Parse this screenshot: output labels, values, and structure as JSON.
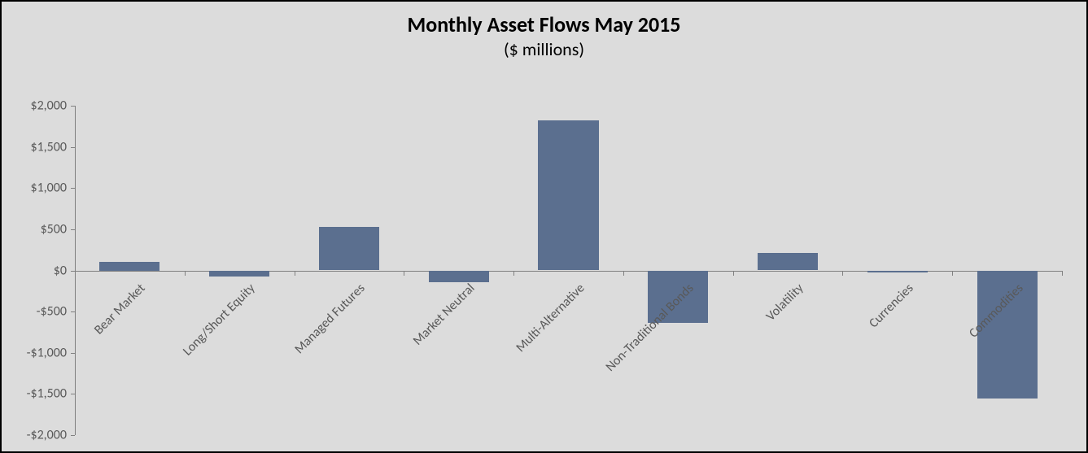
{
  "chart": {
    "type": "bar",
    "title": "Monthly Asset Flows May 2015",
    "subtitle": "($ millions)",
    "title_fontsize": 26,
    "subtitle_fontsize": 22,
    "title_weight": "700",
    "background_color": "#dcdcdc",
    "border_color": "#000000",
    "bar_color": "#5b6f8f",
    "axis_color": "#808080",
    "label_color": "#595959",
    "label_fontsize": 16,
    "categories": [
      "Bear Market",
      "Long/Short Equity",
      "Managed Futures",
      "Market Neutral",
      "Multi-Alternative",
      "Non-Traditional Bonds",
      "Volatility",
      "Currencies",
      "Commodities"
    ],
    "values": [
      100,
      -70,
      530,
      -140,
      1820,
      -640,
      210,
      -25,
      -1560
    ],
    "ylim": [
      -2000,
      2000
    ],
    "ytick_step": 500,
    "ytick_labels": [
      "-$2,000",
      "-$1,500",
      "-$1,000",
      "-$500",
      "$0",
      "$500",
      "$1,000",
      "$1,500",
      "$2,000"
    ],
    "ytick_values": [
      -2000,
      -1500,
      -1000,
      -500,
      0,
      500,
      1000,
      1500,
      2000
    ],
    "bar_width_ratio": 0.55,
    "category_label_rotation": -45
  }
}
